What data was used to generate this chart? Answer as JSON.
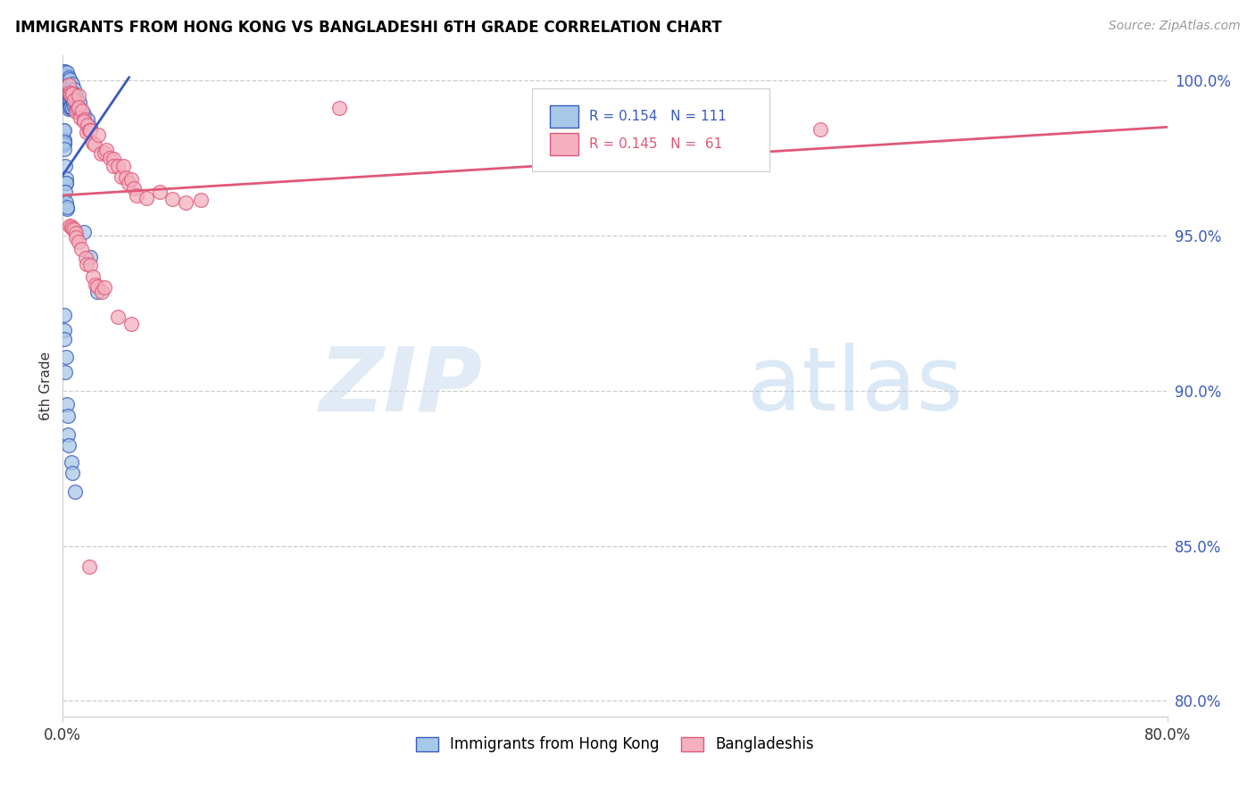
{
  "title": "IMMIGRANTS FROM HONG KONG VS BANGLADESHI 6TH GRADE CORRELATION CHART",
  "source": "Source: ZipAtlas.com",
  "ylabel": "6th Grade",
  "legend_blue_label": "Immigrants from Hong Kong",
  "legend_pink_label": "Bangladeshis",
  "blue_color": "#a8c8e8",
  "pink_color": "#f4b0c0",
  "line_blue_color": "#3a5bbf",
  "line_pink_color": "#e05878",
  "blue_line_x0": 0.0,
  "blue_line_y0": 0.9695,
  "blue_line_x1": 0.048,
  "blue_line_y1": 1.001,
  "pink_line_x0": 0.0,
  "pink_line_y0": 0.963,
  "pink_line_x1": 0.8,
  "pink_line_y1": 0.985,
  "xlim": [
    0.0,
    0.8
  ],
  "ylim": [
    0.795,
    1.008
  ],
  "right_ytick_vals": [
    0.8,
    0.85,
    0.9,
    0.95,
    1.0
  ],
  "right_ytick_labels": [
    "80.0%",
    "85.0%",
    "90.0%",
    "95.0%",
    "100.0%"
  ],
  "blue_x": [
    0.001,
    0.001,
    0.001,
    0.001,
    0.001,
    0.001,
    0.001,
    0.001,
    0.001,
    0.001,
    0.002,
    0.002,
    0.002,
    0.002,
    0.002,
    0.002,
    0.002,
    0.002,
    0.002,
    0.002,
    0.003,
    0.003,
    0.003,
    0.003,
    0.003,
    0.003,
    0.003,
    0.003,
    0.003,
    0.003,
    0.004,
    0.004,
    0.004,
    0.004,
    0.004,
    0.004,
    0.004,
    0.004,
    0.004,
    0.005,
    0.005,
    0.005,
    0.005,
    0.005,
    0.005,
    0.005,
    0.005,
    0.006,
    0.006,
    0.006,
    0.006,
    0.006,
    0.006,
    0.006,
    0.007,
    0.007,
    0.007,
    0.007,
    0.007,
    0.008,
    0.008,
    0.008,
    0.008,
    0.009,
    0.009,
    0.009,
    0.01,
    0.01,
    0.01,
    0.012,
    0.012,
    0.014,
    0.014,
    0.016,
    0.018,
    0.02,
    0.001,
    0.001,
    0.001,
    0.001,
    0.001,
    0.001,
    0.001,
    0.002,
    0.002,
    0.002,
    0.002,
    0.002,
    0.003,
    0.003,
    0.003,
    0.015,
    0.02,
    0.025,
    0.001,
    0.001,
    0.001,
    0.002,
    0.002,
    0.003,
    0.003,
    0.004,
    0.005,
    0.006,
    0.007,
    0.008
  ],
  "blue_y": [
    1.0,
    1.0,
    1.0,
    1.0,
    1.0,
    1.0,
    1.0,
    1.0,
    1.0,
    0.999,
    1.0,
    1.0,
    1.0,
    1.0,
    0.999,
    0.998,
    0.997,
    0.996,
    0.995,
    0.994,
    1.0,
    1.0,
    0.999,
    0.998,
    0.997,
    0.996,
    0.995,
    0.994,
    0.993,
    0.992,
    1.0,
    0.999,
    0.998,
    0.997,
    0.996,
    0.995,
    0.994,
    0.993,
    0.992,
    0.999,
    0.998,
    0.997,
    0.996,
    0.995,
    0.994,
    0.993,
    0.992,
    0.998,
    0.997,
    0.996,
    0.995,
    0.994,
    0.993,
    0.992,
    0.997,
    0.996,
    0.995,
    0.994,
    0.993,
    0.996,
    0.995,
    0.994,
    0.993,
    0.995,
    0.994,
    0.993,
    0.994,
    0.993,
    0.992,
    0.992,
    0.991,
    0.991,
    0.99,
    0.989,
    0.988,
    0.987,
    0.985,
    0.984,
    0.983,
    0.982,
    0.981,
    0.98,
    0.979,
    0.97,
    0.969,
    0.968,
    0.967,
    0.966,
    0.96,
    0.959,
    0.958,
    0.95,
    0.94,
    0.93,
    0.925,
    0.92,
    0.915,
    0.91,
    0.905,
    0.898,
    0.892,
    0.887,
    0.882,
    0.877,
    0.872,
    0.867
  ],
  "pink_x": [
    0.004,
    0.005,
    0.006,
    0.007,
    0.008,
    0.009,
    0.01,
    0.011,
    0.012,
    0.013,
    0.014,
    0.015,
    0.016,
    0.017,
    0.018,
    0.019,
    0.02,
    0.022,
    0.024,
    0.026,
    0.028,
    0.03,
    0.032,
    0.034,
    0.036,
    0.038,
    0.04,
    0.042,
    0.044,
    0.046,
    0.048,
    0.05,
    0.052,
    0.054,
    0.06,
    0.07,
    0.08,
    0.09,
    0.1,
    0.005,
    0.006,
    0.007,
    0.008,
    0.009,
    0.01,
    0.012,
    0.014,
    0.016,
    0.018,
    0.02,
    0.022,
    0.024,
    0.026,
    0.028,
    0.03,
    0.04,
    0.05,
    0.2,
    0.5,
    0.55,
    0.018
  ],
  "pink_y": [
    0.998,
    0.997,
    0.996,
    0.995,
    0.994,
    0.993,
    0.992,
    0.991,
    0.99,
    0.989,
    0.988,
    0.987,
    0.986,
    0.985,
    0.984,
    0.983,
    0.982,
    0.981,
    0.98,
    0.979,
    0.978,
    0.977,
    0.976,
    0.975,
    0.974,
    0.973,
    0.972,
    0.971,
    0.97,
    0.969,
    0.968,
    0.967,
    0.966,
    0.965,
    0.964,
    0.963,
    0.962,
    0.961,
    0.96,
    0.955,
    0.954,
    0.953,
    0.952,
    0.951,
    0.95,
    0.948,
    0.946,
    0.944,
    0.942,
    0.94,
    0.938,
    0.936,
    0.934,
    0.932,
    0.93,
    0.925,
    0.92,
    0.99,
    0.985,
    0.983,
    0.845
  ]
}
